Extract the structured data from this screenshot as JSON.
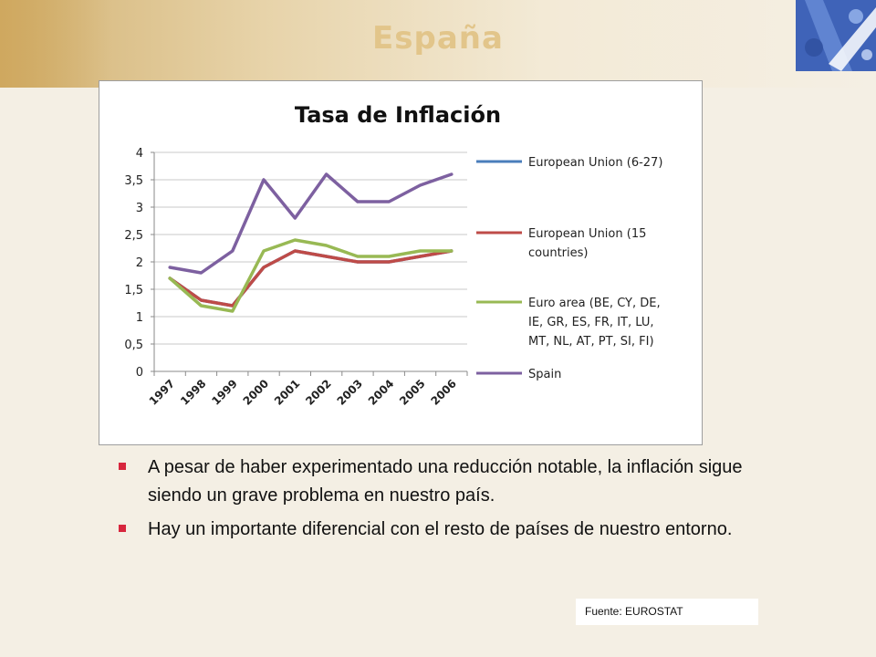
{
  "slide": {
    "title": "España",
    "bullets": [
      "A pesar de haber experimentado una reducción notable, la inflación sigue siendo un grave problema en nuestro país.",
      "Hay un importante diferencial con el resto de países de nuestro entorno."
    ],
    "source": "Fuente: EUROSTAT",
    "bullet_color": "#d7263d",
    "title_color": "#e2c58a"
  },
  "chart_data": {
    "type": "line",
    "title": "Tasa de Inflación",
    "xlabel": "",
    "ylabel": "",
    "categories": [
      "1997",
      "1998",
      "1999",
      "2000",
      "2001",
      "2002",
      "2003",
      "2004",
      "2005",
      "2006"
    ],
    "y_ticks": [
      "0",
      "0,5",
      "1",
      "1,5",
      "2",
      "2,5",
      "3",
      "3,5",
      "4"
    ],
    "ylim": [
      0,
      4
    ],
    "grid": true,
    "legend_position": "right",
    "series": [
      {
        "name": "European Union (6-27)",
        "color": "#4a7ebb",
        "values": [
          1.7,
          1.3,
          1.2,
          1.9,
          2.2,
          2.1,
          2.0,
          2.0,
          2.1,
          2.2
        ]
      },
      {
        "name": "European Union (15 countries)",
        "color": "#be4b48",
        "values": [
          1.7,
          1.3,
          1.2,
          1.9,
          2.2,
          2.1,
          2.0,
          2.0,
          2.1,
          2.2
        ]
      },
      {
        "name": "Euro area (BE, CY, DE, IE, GR, ES, FR, IT, LU, MT, NL, AT, PT, SI, FI)",
        "color": "#98b954",
        "values": [
          1.7,
          1.2,
          1.1,
          2.2,
          2.4,
          2.3,
          2.1,
          2.1,
          2.2,
          2.2
        ]
      },
      {
        "name": "Spain",
        "color": "#7d60a0",
        "values": [
          1.9,
          1.8,
          2.2,
          3.5,
          2.8,
          3.6,
          3.1,
          3.1,
          3.4,
          3.6
        ]
      }
    ]
  }
}
